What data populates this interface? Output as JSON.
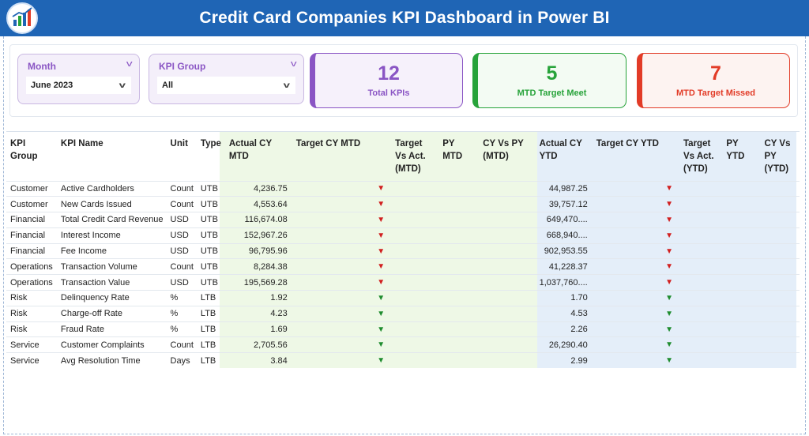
{
  "header": {
    "title": "Credit Card Companies KPI Dashboard in Power BI"
  },
  "colors": {
    "header_bg": "#1f65b5",
    "total_accent": "#8a55c4",
    "meet_accent": "#27a33a",
    "missed_accent": "#e23b27",
    "mtd_band": "#eef8e6",
    "ytd_band": "#e4eef9"
  },
  "filters": {
    "month": {
      "title": "Month",
      "value": "June 2023"
    },
    "kpi_group": {
      "title": "KPI Group",
      "value": "All"
    }
  },
  "cards": {
    "total": {
      "value": "12",
      "label": "Total KPIs"
    },
    "meet": {
      "value": "5",
      "label": "MTD Target Meet"
    },
    "missed": {
      "value": "7",
      "label": "MTD Target Missed"
    }
  },
  "table": {
    "headers": {
      "kpi_group": "KPI Group",
      "kpi_name": "KPI Name",
      "unit": "Unit",
      "type": "Type",
      "actual_cy_mtd": "Actual CY MTD",
      "target_cy_mtd": "Target CY MTD",
      "target_vs_act_mtd": "Target Vs Act. (MTD)",
      "py_mtd": "PY MTD",
      "cy_vs_py_mtd": "CY Vs PY (MTD)",
      "actual_cy_ytd": "Actual CY YTD",
      "target_cy_ytd": "Target CY YTD",
      "target_vs_act_ytd": "Target Vs Act. (YTD)",
      "py_ytd": "PY YTD",
      "cy_vs_py_ytd": "CY Vs PY (YTD)"
    },
    "arrow_icons": {
      "up": "▲",
      "down": "▼"
    },
    "rows": [
      {
        "group": "Customer",
        "name": "Active Cardholders",
        "unit": "Count",
        "type": "UTB",
        "actual_mtd": "4,236.75",
        "mtd_arrow": "down",
        "actual_ytd": "44,987.25",
        "ytd_arrow": "down"
      },
      {
        "group": "Customer",
        "name": "New Cards Issued",
        "unit": "Count",
        "type": "UTB",
        "actual_mtd": "4,553.64",
        "mtd_arrow": "down",
        "actual_ytd": "39,757.12",
        "ytd_arrow": "down"
      },
      {
        "group": "Financial",
        "name": "Total Credit Card Revenue",
        "unit": "USD",
        "type": "UTB",
        "actual_mtd": "116,674.08",
        "mtd_arrow": "down",
        "actual_ytd": "649,470....",
        "ytd_arrow": "down"
      },
      {
        "group": "Financial",
        "name": "Interest Income",
        "unit": "USD",
        "type": "UTB",
        "actual_mtd": "152,967.26",
        "mtd_arrow": "down",
        "actual_ytd": "668,940....",
        "ytd_arrow": "down"
      },
      {
        "group": "Financial",
        "name": "Fee Income",
        "unit": "USD",
        "type": "UTB",
        "actual_mtd": "96,795.96",
        "mtd_arrow": "down",
        "actual_ytd": "902,953.55",
        "ytd_arrow": "down"
      },
      {
        "group": "Operations",
        "name": "Transaction Volume",
        "unit": "Count",
        "type": "UTB",
        "actual_mtd": "8,284.38",
        "mtd_arrow": "down",
        "actual_ytd": "41,228.37",
        "ytd_arrow": "down"
      },
      {
        "group": "Operations",
        "name": "Transaction Value",
        "unit": "USD",
        "type": "UTB",
        "actual_mtd": "195,569.28",
        "mtd_arrow": "down",
        "actual_ytd": "1,037,760....",
        "ytd_arrow": "down"
      },
      {
        "group": "Risk",
        "name": "Delinquency Rate",
        "unit": "%",
        "type": "LTB",
        "actual_mtd": "1.92",
        "mtd_arrow": "down-green",
        "actual_ytd": "1.70",
        "ytd_arrow": "down-green"
      },
      {
        "group": "Risk",
        "name": "Charge-off Rate",
        "unit": "%",
        "type": "LTB",
        "actual_mtd": "4.23",
        "mtd_arrow": "down-green",
        "actual_ytd": "4.53",
        "ytd_arrow": "down-green"
      },
      {
        "group": "Risk",
        "name": "Fraud Rate",
        "unit": "%",
        "type": "LTB",
        "actual_mtd": "1.69",
        "mtd_arrow": "down-green",
        "actual_ytd": "2.26",
        "ytd_arrow": "down-green"
      },
      {
        "group": "Service",
        "name": "Customer Complaints",
        "unit": "Count",
        "type": "LTB",
        "actual_mtd": "2,705.56",
        "mtd_arrow": "down-green",
        "actual_ytd": "26,290.40",
        "ytd_arrow": "down-green"
      },
      {
        "group": "Service",
        "name": "Avg Resolution Time",
        "unit": "Days",
        "type": "LTB",
        "actual_mtd": "3.84",
        "mtd_arrow": "down-green",
        "actual_ytd": "2.99",
        "ytd_arrow": "down-green"
      }
    ]
  }
}
